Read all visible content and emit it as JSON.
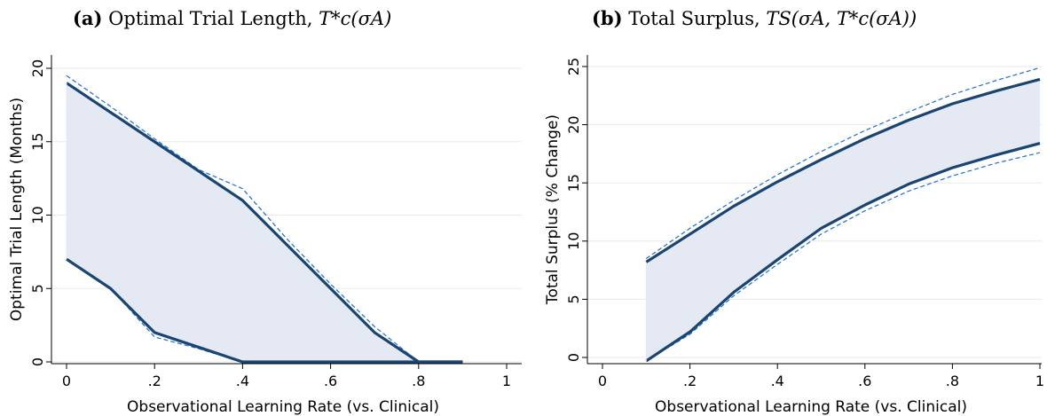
{
  "panels": [
    {
      "tag": "(a)",
      "title_text": "Optimal Trial Length, ",
      "title_math": "T*c(σA)"
    },
    {
      "tag": "(b)",
      "title_text": "Total Surplus, ",
      "title_math": "TS(σA, T*c(σA))"
    }
  ],
  "colors": {
    "band_fill": "#e5e9f3",
    "line": "#1a4570",
    "ci_line": "#1f6fd1",
    "grid": "#eaeaea",
    "axis": "#000000"
  },
  "chart_data": [
    {
      "type": "area",
      "xlabel": "Observational Learning Rate (vs. Clinical)",
      "ylabel": "Optimal Trial Length (Months)",
      "xlim": [
        0,
        1
      ],
      "ylim": [
        0,
        20
      ],
      "xticks": [
        0,
        0.2,
        0.4,
        0.6,
        0.8,
        1
      ],
      "xtick_labels": [
        "0",
        ".2",
        ".4",
        ".6",
        ".8",
        "1"
      ],
      "yticks": [
        0,
        5,
        10,
        15,
        20
      ],
      "ytick_labels": [
        "0",
        "5",
        "10",
        "15",
        "20"
      ],
      "grid": true,
      "x": [
        0,
        0.1,
        0.2,
        0.3,
        0.4,
        0.5,
        0.6,
        0.7,
        0.8,
        0.9
      ],
      "series": [
        {
          "role": "upper",
          "values": [
            19,
            17,
            15,
            13,
            11,
            8,
            5,
            2,
            0,
            0
          ]
        },
        {
          "role": "lower",
          "values": [
            7,
            5,
            2,
            1,
            0,
            0,
            0,
            0,
            0,
            0
          ]
        },
        {
          "role": "upper-ci",
          "values": [
            19.5,
            17.4,
            15.2,
            13.1,
            11.8,
            8.4,
            5.3,
            2.4,
            0,
            0
          ]
        },
        {
          "role": "lower-ci",
          "values": [
            7,
            5,
            1.7,
            0.9,
            0,
            0,
            0,
            0,
            0,
            0
          ]
        }
      ]
    },
    {
      "type": "area",
      "xlabel": "Observational Learning Rate (vs. Clinical)",
      "ylabel": "Total Surplus (% Change)",
      "xlim": [
        0,
        1
      ],
      "ylim": [
        -0.5,
        25
      ],
      "xticks": [
        0,
        0.2,
        0.4,
        0.6,
        0.8,
        1
      ],
      "xtick_labels": [
        "0",
        ".2",
        ".4",
        ".6",
        ".8",
        "1"
      ],
      "yticks": [
        0,
        5,
        10,
        15,
        20,
        25
      ],
      "ytick_labels": [
        "0",
        "5",
        "10",
        "15",
        "20",
        "25"
      ],
      "grid": true,
      "x": [
        0.1,
        0.2,
        0.3,
        0.4,
        0.5,
        0.6,
        0.7,
        0.8,
        0.9,
        1
      ],
      "series": [
        {
          "role": "upper",
          "values": [
            8.2,
            10.6,
            13.0,
            15.1,
            17.0,
            18.8,
            20.4,
            21.8,
            22.9,
            23.9
          ]
        },
        {
          "role": "lower",
          "values": [
            -0.3,
            2.2,
            5.6,
            8.4,
            11.1,
            13.1,
            14.9,
            16.3,
            17.4,
            18.4
          ]
        },
        {
          "role": "upper-ci",
          "values": [
            8.5,
            11.1,
            13.5,
            15.7,
            17.7,
            19.5,
            21.1,
            22.6,
            23.8,
            24.9
          ]
        },
        {
          "role": "lower-ci",
          "values": [
            -0.3,
            2.0,
            5.3,
            8.0,
            10.6,
            12.6,
            14.3,
            15.6,
            16.7,
            17.6
          ]
        }
      ]
    }
  ]
}
